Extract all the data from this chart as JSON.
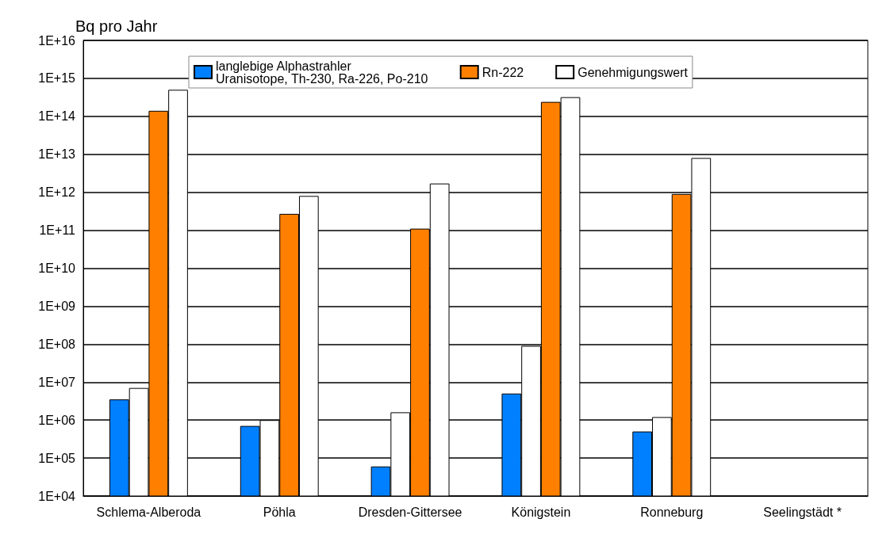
{
  "chart_data": {
    "type": "bar",
    "ylabel": "Bq pro Jahr",
    "log": "y",
    "grid": "y",
    "legend": "top",
    "categories": [
      "Schlema-Alberoda",
      "Pöhla",
      "Dresden-Gittersee",
      "Königstein",
      "Ronneburg",
      "Seelingstädt *"
    ],
    "ylim": [
      10000,
      1e+16
    ],
    "yticks": [
      {
        "value": 10000,
        "label": "1E+04"
      },
      {
        "value": 100000,
        "label": "1E+05"
      },
      {
        "value": 1000000,
        "label": "1E+06"
      },
      {
        "value": 10000000,
        "label": "1E+07"
      },
      {
        "value": 100000000,
        "label": "1E+08"
      },
      {
        "value": 1000000000,
        "label": "1E+09"
      },
      {
        "value": 10000000000,
        "label": "1E+10"
      },
      {
        "value": 100000000000,
        "label": "1E+11"
      },
      {
        "value": 1000000000000,
        "label": "1E+12"
      },
      {
        "value": 10000000000000,
        "label": "1E+13"
      },
      {
        "value": 100000000000000,
        "label": "1E+14"
      },
      {
        "value": 1000000000000000,
        "label": "1E+15"
      },
      {
        "value": 1e+16,
        "label": "1E+16"
      }
    ],
    "series": [
      {
        "name": "langlebige Alphastrahler\nUranisotope, Th-230, Ra-226, Po-210",
        "color": "#0080ff",
        "values": [
          3500000,
          700000,
          60000,
          5000000,
          500000,
          null
        ]
      },
      {
        "color": "#ffffff",
        "values": [
          7000000,
          1000000,
          1600000,
          90000000,
          1200000,
          null
        ]
      },
      {
        "name": "Rn-222",
        "color": "#ff8000",
        "values": [
          140000000000000,
          270000000000,
          110000000000,
          240000000000000,
          900000000000,
          null
        ]
      },
      {
        "name": "Genehmigungswert",
        "color": "#ffffff",
        "values": [
          500000000000000,
          800000000000,
          1700000000000,
          320000000000000,
          8000000000000,
          null
        ]
      }
    ]
  }
}
